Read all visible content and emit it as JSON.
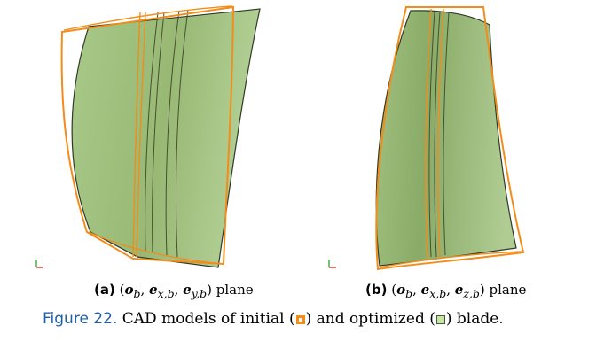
{
  "colors": {
    "initial_edge": "#f28c1b",
    "optimized_fill": "#9dbd78",
    "optimized_edge": "#2f3a28",
    "figure_label": "#1f5fa8",
    "axis_x": "#d62728",
    "axis_y": "#2ca02c"
  },
  "subfigures": [
    {
      "label": "(a)",
      "vec1": "o",
      "vec1_sub": "b",
      "vec2": "e",
      "vec2_sub": "x,b",
      "vec3": "e",
      "vec3_sub": "y,b",
      "suffix": "plane"
    },
    {
      "label": "(b)",
      "vec1": "o",
      "vec1_sub": "b",
      "vec2": "e",
      "vec2_sub": "x,b",
      "vec3": "e",
      "vec3_sub": "z,b",
      "suffix": "plane"
    }
  ],
  "caption": {
    "label": "Figure 22.",
    "text_before": "CAD models of initial (",
    "initial_swatch": "initial-blade-swatch",
    "text_middle": ") and optimized (",
    "optimized_swatch": "optimized-blade-swatch",
    "text_after": ") blade."
  }
}
